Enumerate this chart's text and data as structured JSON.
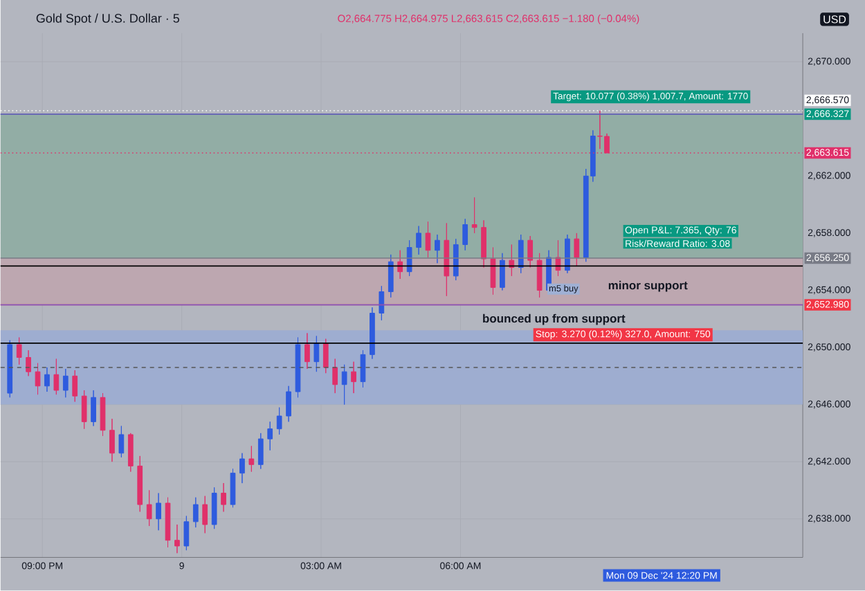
{
  "chart_data": {
    "type": "candlestick",
    "title": "Gold Spot / U.S. Dollar · 5",
    "subtitle": "O2,664.775 H2,664.975 L2,663.615 C2,663.615 −1.180 (−0.04%)",
    "x": [
      "2024-12-08T20:18",
      "2024-12-08T20:30",
      "2024-12-08T20:42",
      "2024-12-08T20:54",
      "2024-12-08T21:06",
      "2024-12-08T21:18",
      "2024-12-08T21:30",
      "2024-12-08T21:42",
      "2024-12-08T21:54",
      "2024-12-08T22:06",
      "2024-12-08T22:18",
      "2024-12-08T22:30",
      "2024-12-08T22:42",
      "2024-12-08T22:54",
      "2024-12-08T23:06",
      "2024-12-08T23:18",
      "2024-12-08T23:30",
      "2024-12-08T23:42",
      "2024-12-08T23:54",
      "2024-12-09T00:06",
      "2024-12-09T00:18",
      "2024-12-09T00:30",
      "2024-12-09T00:42",
      "2024-12-09T00:54",
      "2024-12-09T01:06",
      "2024-12-09T01:18",
      "2024-12-09T01:30",
      "2024-12-09T01:42",
      "2024-12-09T01:54",
      "2024-12-09T02:06",
      "2024-12-09T02:18",
      "2024-12-09T02:30",
      "2024-12-09T02:42",
      "2024-12-09T02:54",
      "2024-12-09T03:06",
      "2024-12-09T03:18",
      "2024-12-09T03:30",
      "2024-12-09T03:42",
      "2024-12-09T03:54",
      "2024-12-09T04:06",
      "2024-12-09T04:18",
      "2024-12-09T04:30",
      "2024-12-09T04:42",
      "2024-12-09T04:54",
      "2024-12-09T05:06",
      "2024-12-09T05:18",
      "2024-12-09T05:30",
      "2024-12-09T05:42",
      "2024-12-09T05:54",
      "2024-12-09T06:06",
      "2024-12-09T06:18",
      "2024-12-09T06:30",
      "2024-12-09T06:42",
      "2024-12-09T06:54",
      "2024-12-09T07:06",
      "2024-12-09T07:18",
      "2024-12-09T07:30",
      "2024-12-09T07:42",
      "2024-12-09T07:54",
      "2024-12-09T08:06",
      "2024-12-09T08:18",
      "2024-12-09T08:30",
      "2024-12-09T08:42",
      "2024-12-09T08:51",
      "2024-12-09T09:00",
      "2024-12-09T09:09"
    ],
    "ohlc": [
      [
        2646.8,
        2650.5,
        2646.5,
        2650.2
      ],
      [
        2650.2,
        2650.7,
        2648.8,
        2649.3
      ],
      [
        2649.3,
        2649.8,
        2648.0,
        2648.3
      ],
      [
        2648.3,
        2648.9,
        2646.7,
        2647.3
      ],
      [
        2647.3,
        2648.6,
        2646.9,
        2648.1
      ],
      [
        2648.1,
        2649.2,
        2646.7,
        2647.0
      ],
      [
        2647.0,
        2648.5,
        2646.5,
        2648.0
      ],
      [
        2648.0,
        2648.4,
        2646.2,
        2646.6
      ],
      [
        2646.6,
        2647.0,
        2644.3,
        2644.8
      ],
      [
        2644.8,
        2647.0,
        2644.5,
        2646.5
      ],
      [
        2646.5,
        2646.8,
        2643.8,
        2644.2
      ],
      [
        2644.2,
        2645.0,
        2642.0,
        2642.6
      ],
      [
        2642.6,
        2644.5,
        2642.3,
        2643.9
      ],
      [
        2643.9,
        2644.0,
        2641.3,
        2641.7
      ],
      [
        2641.7,
        2642.4,
        2638.5,
        2639.0
      ],
      [
        2639.0,
        2640.0,
        2637.5,
        2638.0
      ],
      [
        2638.0,
        2639.8,
        2637.2,
        2639.1
      ],
      [
        2639.1,
        2639.5,
        2636.0,
        2636.5
      ],
      [
        2636.5,
        2637.6,
        2635.6,
        2636.1
      ],
      [
        2636.1,
        2638.2,
        2635.8,
        2637.8
      ],
      [
        2637.8,
        2639.5,
        2637.4,
        2639.0
      ],
      [
        2639.0,
        2639.6,
        2637.0,
        2637.6
      ],
      [
        2637.6,
        2640.2,
        2637.3,
        2639.8
      ],
      [
        2639.8,
        2640.5,
        2638.5,
        2639.0
      ],
      [
        2639.0,
        2641.5,
        2638.8,
        2641.2
      ],
      [
        2641.2,
        2642.6,
        2640.5,
        2642.2
      ],
      [
        2642.2,
        2643.1,
        2641.3,
        2641.8
      ],
      [
        2641.8,
        2644.0,
        2641.5,
        2643.6
      ],
      [
        2643.6,
        2644.8,
        2642.8,
        2644.3
      ],
      [
        2644.3,
        2645.8,
        2643.9,
        2645.2
      ],
      [
        2645.2,
        2647.3,
        2644.8,
        2646.9
      ],
      [
        2646.9,
        2650.7,
        2646.5,
        2650.2
      ],
      [
        2650.2,
        2651.0,
        2648.5,
        2649.0
      ],
      [
        2649.0,
        2650.8,
        2648.3,
        2650.3
      ],
      [
        2650.3,
        2650.6,
        2648.2,
        2648.6
      ],
      [
        2648.6,
        2649.2,
        2646.8,
        2647.4
      ],
      [
        2647.4,
        2648.8,
        2646.0,
        2648.3
      ],
      [
        2648.3,
        2649.0,
        2646.8,
        2647.6
      ],
      [
        2647.6,
        2649.8,
        2647.2,
        2649.5
      ],
      [
        2649.5,
        2652.8,
        2649.2,
        2652.4
      ],
      [
        2652.4,
        2654.3,
        2651.9,
        2653.9
      ],
      [
        2653.9,
        2656.5,
        2653.5,
        2656.0
      ],
      [
        2656.0,
        2656.8,
        2654.8,
        2655.3
      ],
      [
        2655.3,
        2657.5,
        2655.0,
        2657.0
      ],
      [
        2657.0,
        2658.5,
        2656.5,
        2658.0
      ],
      [
        2658.0,
        2658.8,
        2656.3,
        2656.8
      ],
      [
        2656.8,
        2657.9,
        2655.9,
        2657.5
      ],
      [
        2657.5,
        2658.7,
        2653.6,
        2655.0
      ],
      [
        2655.0,
        2657.6,
        2654.7,
        2657.2
      ],
      [
        2657.2,
        2659.0,
        2656.8,
        2658.6
      ],
      [
        2658.6,
        2660.5,
        2658.0,
        2658.4
      ],
      [
        2658.4,
        2658.9,
        2655.6,
        2656.2
      ],
      [
        2656.2,
        2657.0,
        2653.7,
        2654.2
      ],
      [
        2654.2,
        2656.6,
        2654.0,
        2656.1
      ],
      [
        2656.1,
        2657.2,
        2655.0,
        2655.6
      ],
      [
        2655.6,
        2657.9,
        2655.2,
        2657.5
      ],
      [
        2657.5,
        2657.8,
        2655.6,
        2656.1
      ],
      [
        2656.1,
        2656.6,
        2653.5,
        2654.0
      ],
      [
        2654.0,
        2656.8,
        2653.8,
        2656.3
      ],
      [
        2656.3,
        2657.5,
        2655.0,
        2655.4
      ],
      [
        2655.4,
        2657.9,
        2655.2,
        2657.6
      ],
      [
        2657.6,
        2658.0,
        2655.7,
        2656.3
      ],
      [
        2656.3,
        2662.5,
        2656.0,
        2662.0
      ],
      [
        2662.0,
        2665.2,
        2661.6,
        2664.8
      ],
      [
        2664.8,
        2666.57,
        2663.9,
        2664.775
      ],
      [
        2664.775,
        2664.975,
        2663.615,
        2663.615
      ]
    ],
    "xlim": [
      "2024-12-08T20:06",
      "2024-12-09T13:22"
    ],
    "ylim": [
      2635.3,
      2672
    ],
    "xticks": [
      {
        "value": "2024-12-08T21:00",
        "label": "09:00 PM"
      },
      {
        "value": "2024-12-09T00:00",
        "label": "9"
      },
      {
        "value": "2024-12-09T03:00",
        "label": "03:00 AM"
      },
      {
        "value": "2024-12-09T06:00",
        "label": "06:00 AM"
      }
    ],
    "yticks": [
      {
        "value": 2638,
        "label": "2,638.000"
      },
      {
        "value": 2642,
        "label": "2,642.000"
      },
      {
        "value": 2646,
        "label": "2,646.000"
      },
      {
        "value": 2650,
        "label": "2,650.000"
      },
      {
        "value": 2654,
        "label": "2,654.000"
      },
      {
        "value": 2658,
        "label": "2,658.000"
      },
      {
        "value": 2662,
        "label": "2,662.000"
      },
      {
        "value": 2670,
        "label": "2,670.000"
      }
    ],
    "grid": true,
    "bands": [
      {
        "axis": "y",
        "from": 2656.25,
        "to": 2666.327,
        "color": "#92ada5"
      },
      {
        "axis": "y",
        "from": 2652.98,
        "to": 2656.25,
        "color": "#bda7b0"
      },
      {
        "axis": "y",
        "from": 2646.0,
        "to": 2651.2,
        "color": "#9eadd0"
      }
    ],
    "ref_lines": [
      {
        "axis": "y",
        "value": 2666.57,
        "label": "2,666.570",
        "color": "#ffffff",
        "line_style": "dotted"
      },
      {
        "axis": "y",
        "value": 2666.327,
        "label": "2,666.327",
        "color": "#089981"
      },
      {
        "axis": "y",
        "value": 2663.615,
        "label": "2,663.615",
        "color": "#e0306a",
        "line_style": "dotted"
      },
      {
        "axis": "y",
        "value": 2656.25,
        "label": "2,656.250",
        "color": "#787b86"
      },
      {
        "axis": "y",
        "value": 2652.98,
        "label": "2,652.980",
        "color": "#f23645"
      },
      {
        "axis": "y",
        "value": 2666.327,
        "color": "#7e57c2"
      },
      {
        "axis": "y",
        "value": 2652.98,
        "color": "#7e57c2"
      },
      {
        "axis": "y",
        "value": 2650.3,
        "color": "#000000"
      },
      {
        "axis": "y",
        "value": 2655.7,
        "color": "#000000"
      },
      {
        "axis": "y",
        "value": 2648.6,
        "color": "#555555",
        "line_style": "dashed"
      }
    ],
    "annotations": [
      "bounced up from support",
      "minor support",
      "m5 buy",
      "Target: 10.077 (0.38%) 1,007.7, Amount: 1770",
      "Open P&L: 7.365, Qty: 76",
      "Risk/Reward Ratio: 3.08",
      "Stop: 3.270 (0.12%) 327.0, Amount: 750",
      "USD",
      "Mon 09 Dec '24 12:20 PM"
    ]
  }
}
